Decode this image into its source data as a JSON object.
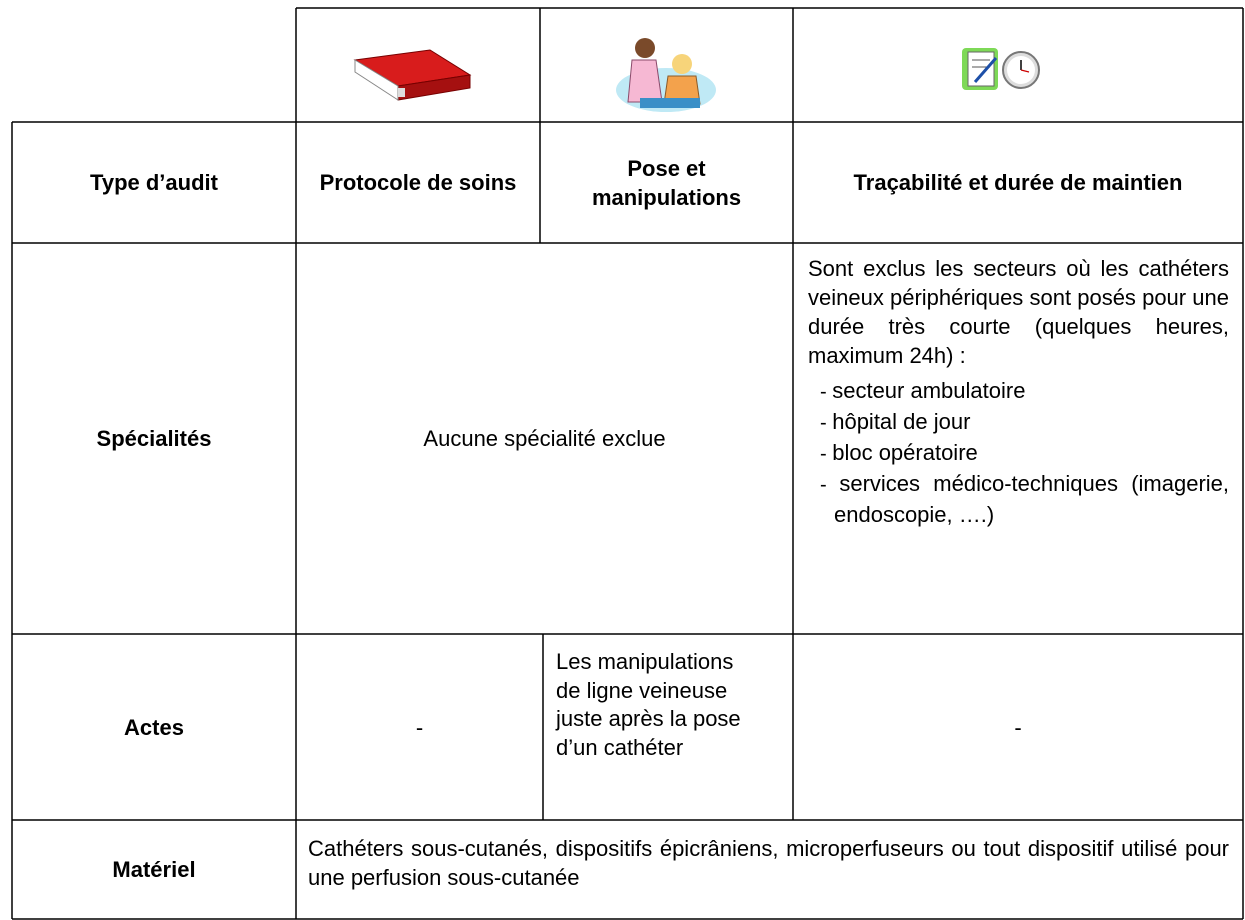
{
  "table": {
    "header": [
      "Type d’audit",
      "Protocole de soins",
      "Pose et manipulations",
      "Traçabilité et durée de maintien"
    ],
    "rows": [
      {
        "label": "Spécialités",
        "cells": [
          "Aucune spécialité exclue",
          {
            "text": "Sont exclus les secteurs où les cathéters veineux périphériques sont posés pour une durée très courte (quelques heures, maximum 24h) :",
            "items": [
              "secteur ambulatoire",
              "hôpital de jour",
              "bloc opératoire",
              "services médico-techniques (imagerie, endoscopie, ….)"
            ]
          }
        ]
      },
      {
        "label": "Actes",
        "cells": [
          "-",
          "Les manipulations de ligne veineuse juste après la pose d’un cathéter",
          "-"
        ]
      },
      {
        "label": "Matériel",
        "cells": [
          "Cathéters sous-cutanés, dispositifs épicrâniens, microperfuseurs ou tout dispositif utilisé pour une perfusion sous-cutanée"
        ]
      }
    ]
  }
}
